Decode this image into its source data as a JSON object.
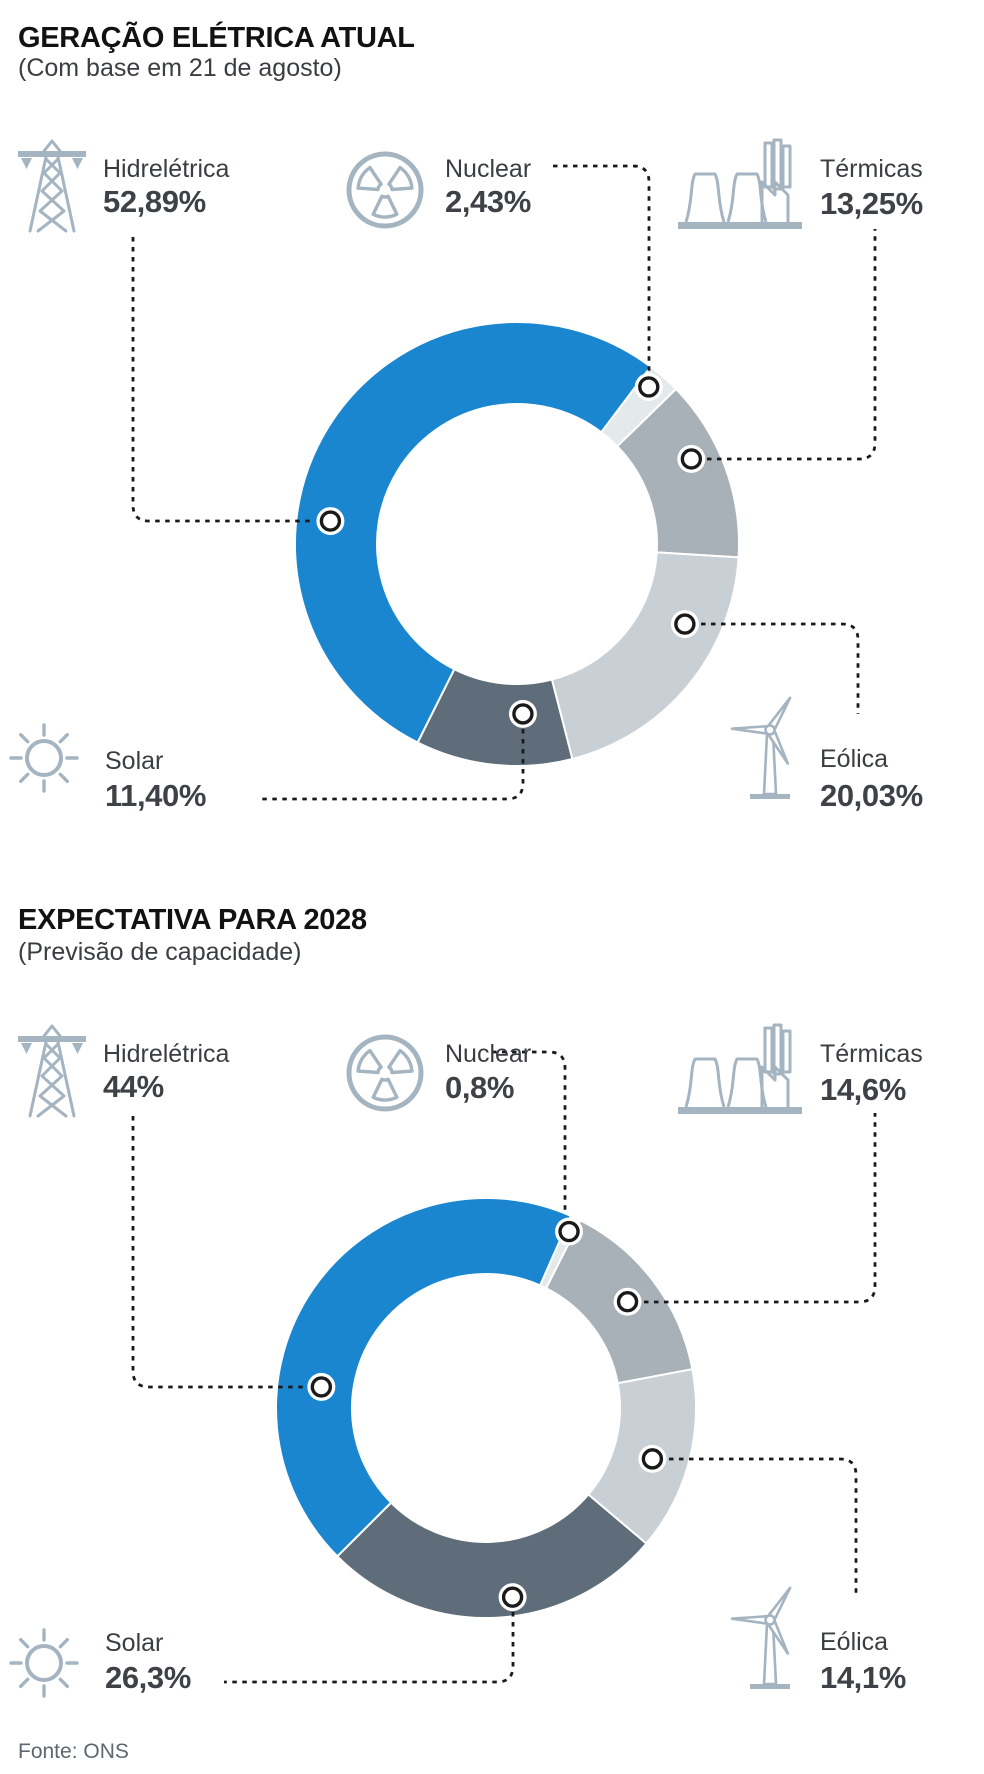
{
  "footer": {
    "source": "Fonte: ONS"
  },
  "colors": {
    "hydro_blue": "#1a86d0",
    "nuclear_gray": "#e4e9ec",
    "thermal_gray": "#a8b1b8",
    "wind_gray": "#c8cfd5",
    "solar_slate": "#5e6d79",
    "icon_steel": "#a4b4c1",
    "connector_black": "#1a1a1a",
    "title_text": "#121212",
    "value_text": "#3e4247",
    "source_text": "#5c6770"
  },
  "sections": [
    {
      "title": "GERAÇÃO ELÉTRICA ATUAL",
      "subtitle": "(Com base em 21 de agosto)",
      "legend": {
        "hidreletrica": {
          "label": "Hidrelétrica",
          "value": "52,89%"
        },
        "nuclear": {
          "label": "Nuclear",
          "value": "2,43%"
        },
        "termicas": {
          "label": "Térmicas",
          "value": "13,25%"
        },
        "solar": {
          "label": "Solar",
          "value": "11,40%"
        },
        "eolica": {
          "label": "Eólica",
          "value": "20,03%"
        }
      }
    },
    {
      "title": "EXPECTATIVA PARA 2028",
      "subtitle": "(Previsão de capacidade)",
      "legend": {
        "hidreletrica": {
          "label": "Hidrelétrica",
          "value": "44%"
        },
        "nuclear": {
          "label": "Nuclear",
          "value": "0,8%"
        },
        "termicas": {
          "label": "Térmicas",
          "value": "14,6%"
        },
        "solar": {
          "label": "Solar",
          "value": "26,3%"
        },
        "eolica": {
          "label": "Eólica",
          "value": "14,1%"
        }
      }
    }
  ],
  "chart_data": [
    {
      "type": "pie",
      "variant": "donut",
      "title": "GERAÇÃO ELÉTRICA ATUAL",
      "subtitle": "(Com base em 21 de agosto)",
      "unit": "%",
      "start_angle_deg": 37,
      "slices": [
        {
          "label": "Nuclear",
          "value": 2.43,
          "display": "2,43%",
          "color": "#e4e9ec"
        },
        {
          "label": "Térmicas",
          "value": 13.25,
          "display": "13,25%",
          "color": "#a8b1b8"
        },
        {
          "label": "Eólica",
          "value": 20.03,
          "display": "20,03%",
          "color": "#c8cfd5"
        },
        {
          "label": "Solar",
          "value": 11.4,
          "display": "11,40%",
          "color": "#5e6d79"
        },
        {
          "label": "Hidrelétrica",
          "value": 52.89,
          "display": "52,89%",
          "color": "#1a86d0"
        }
      ]
    },
    {
      "type": "pie",
      "variant": "donut",
      "title": "EXPECTATIVA PARA 2028",
      "subtitle": "(Previsão de capacidade)",
      "unit": "%",
      "start_angle_deg": 23.8,
      "slices": [
        {
          "label": "Nuclear",
          "value": 0.8,
          "display": "0,8%",
          "color": "#e4e9ec"
        },
        {
          "label": "Térmicas",
          "value": 14.6,
          "display": "14,6%",
          "color": "#a8b1b8"
        },
        {
          "label": "Eólica",
          "value": 14.1,
          "display": "14,1%",
          "color": "#c8cfd5"
        },
        {
          "label": "Solar",
          "value": 26.3,
          "display": "26,3%",
          "color": "#5e6d79"
        },
        {
          "label": "Hidrelétrica",
          "value": 44.0,
          "display": "44%",
          "color": "#1a86d0"
        }
      ]
    }
  ]
}
